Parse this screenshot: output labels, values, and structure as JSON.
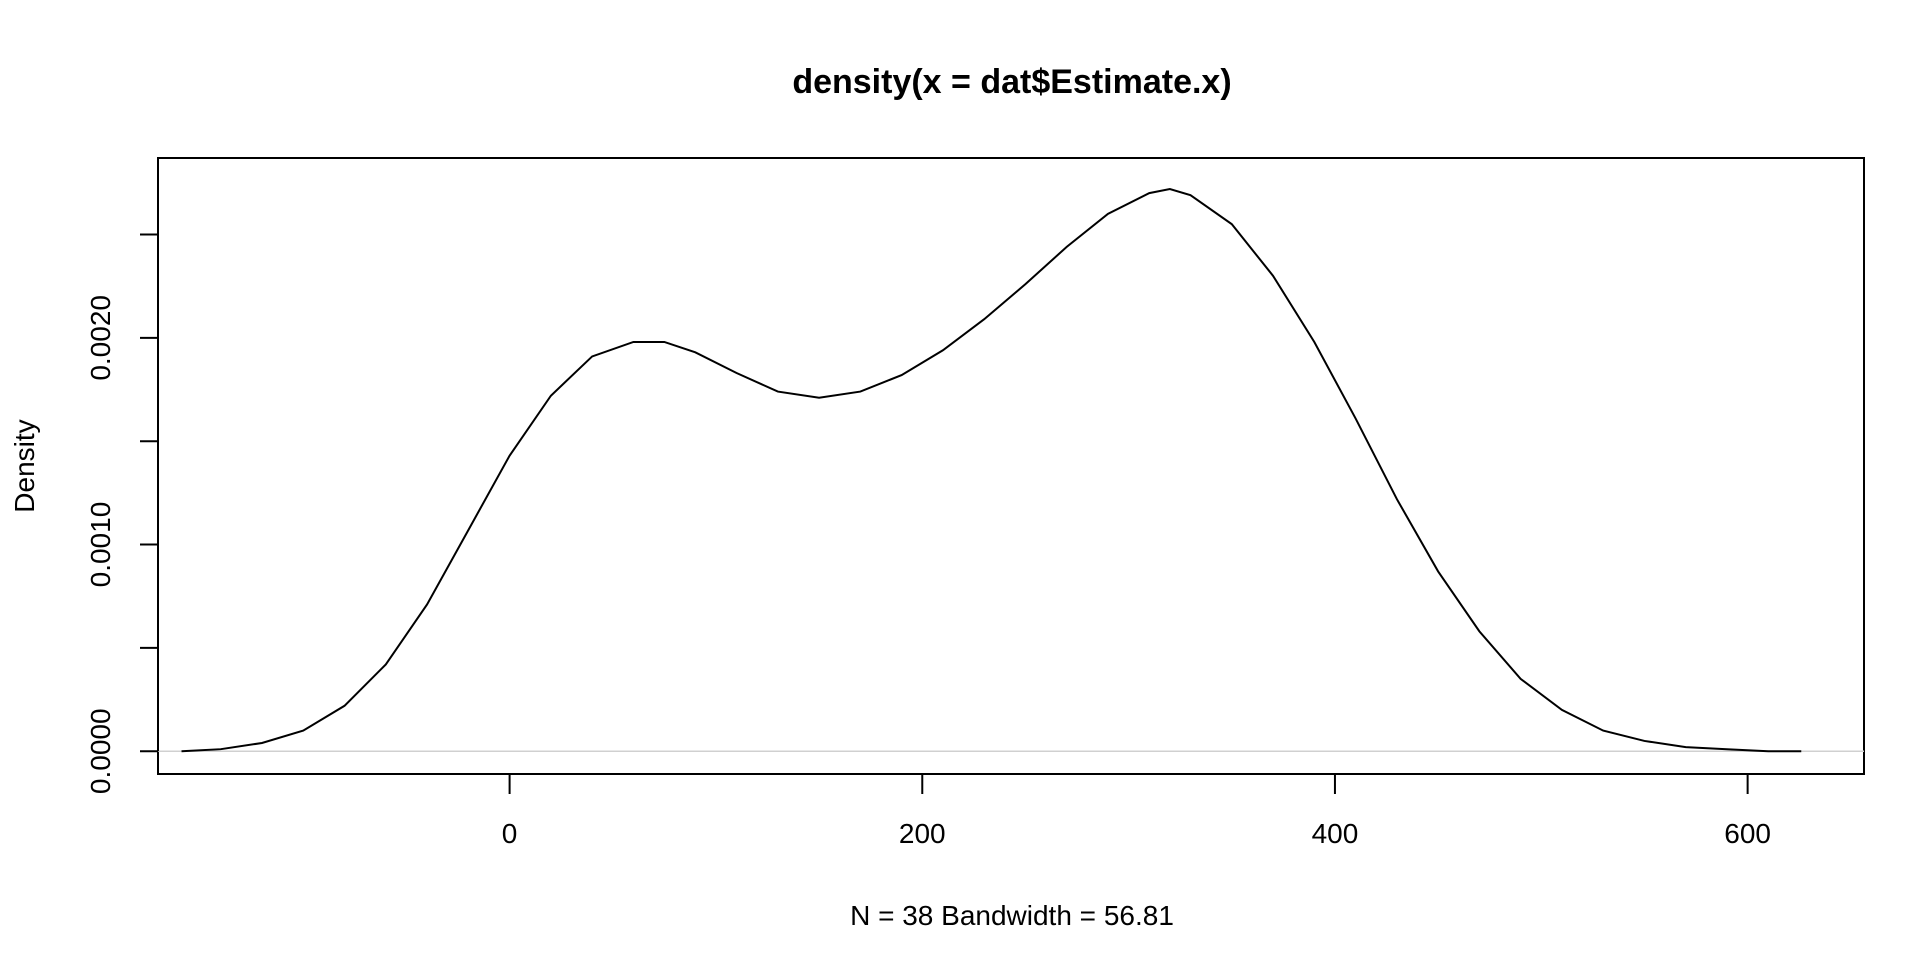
{
  "chart_data": {
    "type": "line",
    "title": "density(x = dat$Estimate.x)",
    "xlabel": "N = 38   Bandwidth = 56.81",
    "ylabel": "Density",
    "xlim": [
      -170.4,
      656.4
    ],
    "ylim": [
      -0.00011,
      0.00287
    ],
    "x_ticks": [
      0,
      200,
      400,
      600
    ],
    "x_tick_labels": [
      "0",
      "200",
      "400",
      "600"
    ],
    "y_ticks": [
      0,
      0.0005,
      0.001,
      0.0015,
      0.002,
      0.0025
    ],
    "y_tick_labels": [
      "0.0000",
      "",
      "0.0010",
      "",
      "0.0020",
      ""
    ],
    "zero_line": true,
    "grid": false,
    "series": [
      {
        "x": [
          -159,
          -140,
          -120,
          -100,
          -80,
          -60,
          -40,
          -20,
          0,
          20,
          40,
          60,
          75,
          90,
          110,
          130,
          150,
          170,
          190,
          210,
          230,
          250,
          270,
          290,
          310,
          320,
          330,
          350,
          370,
          390,
          410,
          430,
          450,
          470,
          490,
          510,
          530,
          550,
          570,
          590,
          610,
          626
        ],
        "values": [
          0.0,
          1e-05,
          4e-05,
          0.0001,
          0.00022,
          0.00042,
          0.00071,
          0.00107,
          0.00143,
          0.00172,
          0.00191,
          0.00198,
          0.00198,
          0.00193,
          0.00183,
          0.00174,
          0.00171,
          0.00174,
          0.00182,
          0.00194,
          0.00209,
          0.00226,
          0.00244,
          0.0026,
          0.0027,
          0.00272,
          0.00269,
          0.00255,
          0.0023,
          0.00198,
          0.00161,
          0.00122,
          0.00087,
          0.00058,
          0.00035,
          0.0002,
          0.0001,
          5e-05,
          2e-05,
          1e-05,
          0.0,
          0.0
        ]
      }
    ]
  }
}
